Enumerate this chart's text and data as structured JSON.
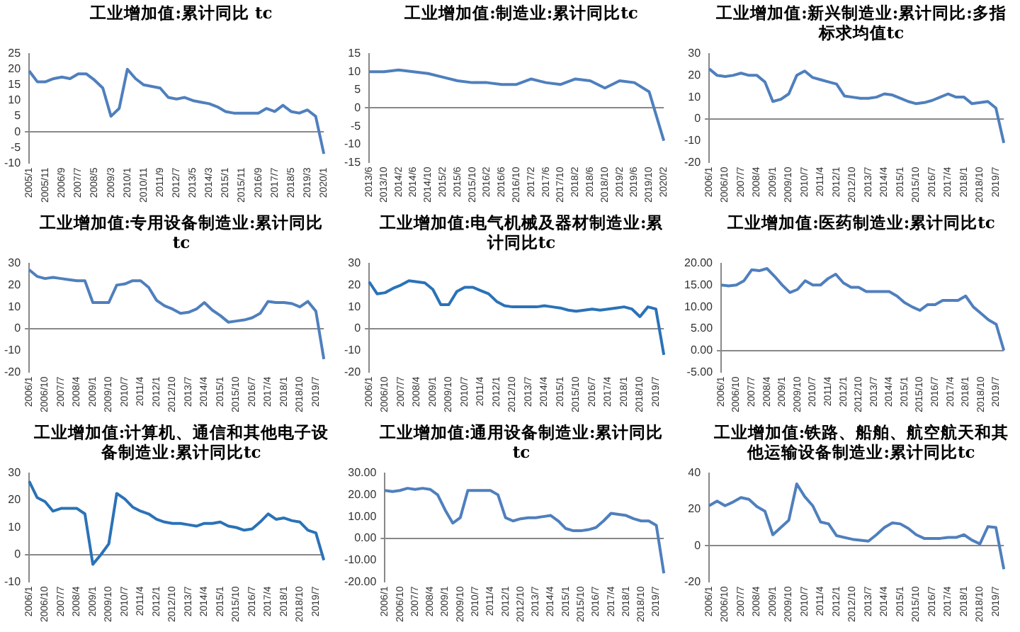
{
  "chart_data": [
    {
      "type": "line",
      "title": "工业增加值:累计同比 tc",
      "color": "#4f7fbd",
      "ylim": [
        -10,
        25
      ],
      "yticks": [
        -10,
        -5,
        0,
        5,
        10,
        15,
        20,
        25
      ],
      "categories": [
        "2005/1",
        null,
        "2005/11",
        null,
        "2006/9",
        null,
        "2007/7",
        null,
        "2008/5",
        null,
        "2009/3",
        null,
        "2010/1",
        null,
        "2010/11",
        null,
        "2011/9",
        null,
        "2012/7",
        null,
        "2013/5",
        null,
        "2014/3",
        null,
        "2015/1",
        null,
        "2015/11",
        null,
        "2016/9",
        null,
        "2017/7",
        null,
        "2018/5",
        null,
        "2019/3",
        null,
        "2020/1"
      ],
      "values": [
        19.5,
        16,
        16,
        17,
        17.5,
        17,
        18.5,
        18.5,
        16.5,
        14,
        5,
        7.5,
        20,
        17,
        15,
        14.5,
        14,
        11,
        10.5,
        11,
        10,
        9.5,
        9,
        8,
        6.5,
        6,
        6,
        6,
        6,
        7.5,
        6.5,
        8.5,
        6.5,
        6,
        7,
        5,
        -7
      ]
    },
    {
      "type": "line",
      "title": "工业增加值:制造业:累计同比tc",
      "color": "#4f7fbd",
      "ylim": [
        -15,
        15
      ],
      "yticks": [
        -15,
        -10,
        -5,
        0,
        5,
        10,
        15
      ],
      "categories": [
        "2013/6",
        "2013/10",
        "2014/2",
        "2014/6",
        "2014/10",
        "2015/2",
        "2015/6",
        "2015/10",
        "2016/2",
        "2016/6",
        "2016/10",
        "2017/2",
        "2017/6",
        "2017/10",
        "2018/2",
        "2018/6",
        "2018/10",
        "2019/2",
        "2019/6",
        "2019/10",
        "2020/2"
      ],
      "values": [
        10,
        10,
        10.5,
        10,
        9.5,
        8.5,
        7.5,
        7,
        7,
        6.5,
        6.5,
        8,
        7,
        6.5,
        8,
        7.5,
        5.5,
        7.5,
        7,
        4.5,
        -9
      ]
    },
    {
      "type": "line",
      "title": "工业增加值:新兴制造业:累计同比:多指标求均值tc",
      "color": "#4f7fbd",
      "ylim": [
        -20,
        30
      ],
      "yticks": [
        -20,
        -10,
        0,
        10,
        20,
        30
      ],
      "categories": [
        "2006/1",
        null,
        "2006/10",
        null,
        "2007/7",
        null,
        "2008/4",
        null,
        "2009/1",
        null,
        "2009/10",
        null,
        "2010/7",
        null,
        "2011/4",
        null,
        "2012/1",
        null,
        "2012/10",
        null,
        "2013/7",
        null,
        "2014/4",
        null,
        "2015/1",
        null,
        "2015/10",
        null,
        "2016/7",
        null,
        "2017/4",
        null,
        "2018/1",
        null,
        "2018/10",
        null,
        "2019/7",
        null
      ],
      "values": [
        23,
        20,
        19.5,
        20,
        21,
        20,
        20,
        17,
        8,
        9,
        11.5,
        20,
        22,
        19,
        18,
        17,
        16,
        10.5,
        10,
        9.5,
        9.5,
        10,
        11.5,
        11,
        9.5,
        8,
        7,
        7.5,
        8.5,
        10,
        11.5,
        10,
        10,
        7,
        7.5,
        8,
        5,
        -11
      ]
    },
    {
      "type": "line",
      "title": "工业增加值:专用设备制造业:累计同比tc",
      "color": "#4f7fbd",
      "ylim": [
        -20,
        30
      ],
      "yticks": [
        -20,
        -10,
        0,
        10,
        20,
        30
      ],
      "categories": [
        "2006/1",
        null,
        "2006/10",
        null,
        "2007/7",
        null,
        "2008/4",
        null,
        "2009/1",
        null,
        "2009/10",
        null,
        "2010/7",
        null,
        "2011/4",
        null,
        "2012/1",
        null,
        "2012/10",
        null,
        "2013/7",
        null,
        "2014/4",
        null,
        "2015/1",
        null,
        "2015/10",
        null,
        "2016/7",
        null,
        "2017/4",
        null,
        "2018/1",
        null,
        "2018/10",
        null,
        "2019/7",
        null
      ],
      "values": [
        27,
        24,
        23,
        23.5,
        23,
        22.5,
        22,
        22,
        12,
        12,
        12,
        20,
        20.5,
        22,
        22,
        19,
        13,
        10.5,
        9,
        7,
        7.5,
        9,
        12,
        8.5,
        6,
        3,
        3.5,
        4,
        5,
        7,
        12.5,
        12,
        12,
        11.5,
        10,
        12.5,
        8,
        -14
      ]
    },
    {
      "type": "line",
      "title": "工业增加值:电气机械及器材制造业:累计同比tc",
      "color": "#2a72b8",
      "ylim": [
        -20,
        30
      ],
      "yticks": [
        -20,
        -10,
        0,
        10,
        20,
        30
      ],
      "categories": [
        "2006/1",
        null,
        "2006/10",
        null,
        "2007/7",
        null,
        "2008/4",
        null,
        "2009/1",
        null,
        "2009/10",
        null,
        "2010/7",
        null,
        "2011/4",
        null,
        "2012/1",
        null,
        "2012/10",
        null,
        "2013/7",
        null,
        "2014/4",
        null,
        "2015/1",
        null,
        "2015/10",
        null,
        "2016/7",
        null,
        "2017/4",
        null,
        "2018/1",
        null,
        "2018/10",
        null,
        "2019/7",
        null
      ],
      "values": [
        21.5,
        16,
        16.5,
        18.5,
        20,
        22,
        21.5,
        21,
        18,
        11,
        11,
        17,
        19,
        19,
        17.5,
        16,
        12.5,
        10.5,
        10,
        10,
        10,
        10,
        10.5,
        10,
        9.5,
        8.5,
        8,
        8.5,
        9,
        8.5,
        9,
        9.5,
        10,
        9,
        5.5,
        10,
        9,
        -12
      ]
    },
    {
      "type": "line",
      "title": "工业增加值:医药制造业:累计同比tc",
      "color": "#4f7fbd",
      "ylim": [
        -5,
        20
      ],
      "yticks": [
        {
          "value": -5,
          "label": "-5.00"
        },
        {
          "value": 0,
          "label": "0.00"
        },
        {
          "value": 5,
          "label": "5.00"
        },
        {
          "value": 10,
          "label": "10.00"
        },
        {
          "value": 15,
          "label": "15.00"
        },
        {
          "value": 20,
          "label": "20.00"
        }
      ],
      "categories": [
        "2006/1",
        null,
        "2006/10",
        null,
        "2007/7",
        null,
        "2008/4",
        null,
        "2009/1",
        null,
        "2009/10",
        null,
        "2010/7",
        null,
        "2011/4",
        null,
        "2012/1",
        null,
        "2012/10",
        null,
        "2013/7",
        null,
        "2014/4",
        null,
        "2015/1",
        null,
        "2015/10",
        null,
        "2016/7",
        null,
        "2017/4",
        null,
        "2018/1",
        null,
        "2018/10",
        null,
        "2019/7",
        null
      ],
      "values": [
        15,
        14.8,
        15,
        16,
        18.5,
        18.3,
        18.8,
        17,
        15,
        13.3,
        14,
        16,
        15,
        15,
        16.5,
        17.5,
        15.5,
        14.5,
        14.5,
        13.5,
        13.5,
        13.5,
        13.5,
        12.5,
        11,
        10,
        9.2,
        10.5,
        10.5,
        11.5,
        11.5,
        11.5,
        12.5,
        10,
        8.5,
        7,
        6,
        0
      ]
    },
    {
      "type": "line",
      "title": "工业增加值:计算机、通信和其他电子设备制造业:累计同比tc",
      "color": "#2a72b8",
      "ylim": [
        -10,
        30
      ],
      "yticks": [
        -10,
        0,
        10,
        20,
        30
      ],
      "categories": [
        "2006/1",
        null,
        "2006/10",
        null,
        "2007/7",
        null,
        "2008/4",
        null,
        "2009/1",
        null,
        "2009/10",
        null,
        "2010/7",
        null,
        "2011/4",
        null,
        "2012/1",
        null,
        "2012/10",
        null,
        "2013/7",
        null,
        "2014/4",
        null,
        "2015/1",
        null,
        "2015/10",
        null,
        "2016/7",
        null,
        "2017/4",
        null,
        "2018/1",
        null,
        "2018/10",
        null,
        "2019/7",
        null
      ],
      "values": [
        27,
        21,
        19.5,
        16,
        17,
        17,
        17,
        15,
        -3.5,
        0,
        4,
        22.5,
        20.5,
        17.5,
        16,
        15,
        13,
        12,
        11.5,
        11.5,
        11,
        10.5,
        11.5,
        11.5,
        12,
        10.5,
        10,
        9,
        9.5,
        12,
        15,
        13,
        13.5,
        12.5,
        12,
        9,
        8,
        -2
      ]
    },
    {
      "type": "line",
      "title": "工业增加值:通用设备制造业:累计同比tc",
      "color": "#4f7fbd",
      "ylim": [
        -20,
        30
      ],
      "yticks": [
        {
          "value": -20,
          "label": "-20.00"
        },
        {
          "value": -10,
          "label": "-10.00"
        },
        {
          "value": 0,
          "label": "0.00"
        },
        {
          "value": 10,
          "label": "10.00"
        },
        {
          "value": 20,
          "label": "20.00"
        },
        {
          "value": 30,
          "label": "30.00"
        }
      ],
      "categories": [
        "2006/1",
        null,
        "2006/10",
        null,
        "2007/7",
        null,
        "2008/4",
        null,
        "2009/1",
        null,
        "2009/10",
        null,
        "2010/7",
        null,
        "2011/4",
        null,
        "2012/1",
        null,
        "2012/10",
        null,
        "2013/7",
        null,
        "2014/4",
        null,
        "2015/1",
        null,
        "2015/10",
        null,
        "2016/7",
        null,
        "2017/4",
        null,
        "2018/1",
        null,
        "2018/10",
        null,
        "2019/7",
        null
      ],
      "values": [
        22,
        21.5,
        22,
        23,
        22.5,
        23,
        22.5,
        20,
        13,
        7,
        9.5,
        22,
        22,
        22,
        22,
        20,
        9.5,
        8,
        9,
        9.5,
        9.5,
        10,
        10.5,
        8,
        4.5,
        3.5,
        3.5,
        4,
        5,
        8,
        11.5,
        11,
        10.5,
        9,
        8,
        8,
        6,
        -16
      ]
    },
    {
      "type": "line",
      "title": "工业增加值:铁路、船舶、航空航天和其他运输设备制造业:累计同比tc",
      "color": "#4f7fbd",
      "ylim": [
        -20,
        40
      ],
      "yticks": [
        -20,
        0,
        20,
        40
      ],
      "categories": [
        "2006/1",
        null,
        "2006/10",
        null,
        "2007/7",
        null,
        "2008/4",
        null,
        "2009/1",
        null,
        "2009/10",
        null,
        "2010/7",
        null,
        "2011/4",
        null,
        "2012/1",
        null,
        "2012/10",
        null,
        "2013/7",
        null,
        "2014/4",
        null,
        "2015/1",
        null,
        "2015/10",
        null,
        "2016/7",
        null,
        "2017/4",
        null,
        "2018/1",
        null,
        "2018/10",
        null,
        "2019/7",
        null
      ],
      "values": [
        22,
        24.5,
        22,
        24,
        26.5,
        25.5,
        21.5,
        19,
        6,
        10,
        14,
        34,
        27,
        22,
        13,
        12,
        5.5,
        4.5,
        3.5,
        3,
        2.5,
        6,
        10,
        12.5,
        12,
        9.5,
        6,
        4,
        4,
        4,
        4.5,
        4.5,
        6,
        3,
        1,
        10.5,
        10,
        -13
      ]
    }
  ]
}
